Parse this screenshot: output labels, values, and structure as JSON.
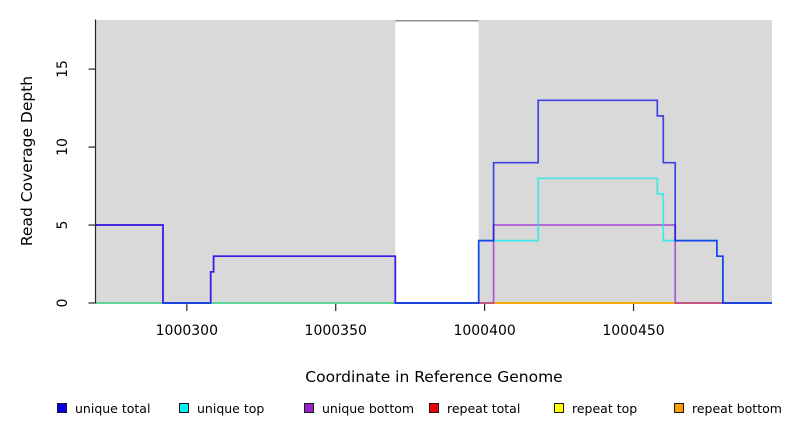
{
  "figure": {
    "y_axis": {
      "title": "Read Coverage Depth",
      "ticks": [
        "0",
        "5",
        "10",
        "15"
      ]
    },
    "x_axis": {
      "title": "Coordinate in Reference Genome",
      "ticks": [
        "1000300",
        "1000350",
        "1000400",
        "1000450"
      ]
    },
    "legend": {
      "items": [
        {
          "label": "unique total",
          "color": "#0000EE"
        },
        {
          "label": "unique top",
          "color": "#00EEEE"
        },
        {
          "label": "unique bottom",
          "color": "#9922CC"
        },
        {
          "label": "repeat total",
          "color": "#EE0000"
        },
        {
          "label": "repeat top",
          "color": "#FFFF00"
        },
        {
          "label": "repeat bottom",
          "color": "#FF9900"
        }
      ]
    }
  },
  "chart_data": {
    "type": "line",
    "subtype": "step-coverage",
    "title": "",
    "xlabel": "Coordinate in Reference Genome",
    "ylabel": "Read Coverage Depth",
    "xlim": [
      1000269.5,
      1000496.5
    ],
    "ylim": [
      0,
      18.15
    ],
    "xticks": [
      1000300,
      1000350,
      1000400,
      1000450
    ],
    "yticks": [
      0,
      5,
      10,
      15
    ],
    "grid": false,
    "legend_position": "bottom",
    "panel_color": "#ffffff",
    "shaded_regions": [
      {
        "x0": 1000269.5,
        "x1": 1000370,
        "color": "#d9d9d9"
      },
      {
        "x0": 1000398,
        "x1": 1000496.5,
        "color": "#d9d9d9"
      }
    ],
    "gap_region": {
      "x0": 1000370,
      "x1": 1000398,
      "top_border_color": "#8f8f8f"
    },
    "line_opacity": 0.7,
    "line_width": 1.7,
    "series": [
      {
        "name": "repeat total",
        "color": "#EE0000",
        "points": [
          [
            1000269.5,
            0
          ],
          [
            1000496.5,
            0
          ]
        ]
      },
      {
        "name": "repeat top",
        "color": "#FFFF00",
        "points": [
          [
            1000269.5,
            0
          ],
          [
            1000496.5,
            0
          ]
        ]
      },
      {
        "name": "repeat bottom",
        "color": "#FF9900",
        "points": [
          [
            1000269.5,
            0
          ],
          [
            1000496.5,
            0
          ]
        ]
      },
      {
        "name": "unique bottom",
        "color": "#9922CC",
        "points": [
          [
            1000269.5,
            5
          ],
          [
            1000292,
            0
          ],
          [
            1000308,
            2
          ],
          [
            1000309,
            3
          ],
          [
            1000370,
            0
          ],
          [
            1000403,
            5
          ],
          [
            1000464,
            0
          ],
          [
            1000496.5,
            0
          ]
        ]
      },
      {
        "name": "unique top",
        "color": "#00EEEE",
        "points": [
          [
            1000269.5,
            0
          ],
          [
            1000398,
            4
          ],
          [
            1000418,
            8
          ],
          [
            1000458,
            7
          ],
          [
            1000460,
            4
          ],
          [
            1000478,
            3
          ],
          [
            1000480,
            0
          ],
          [
            1000496.5,
            0
          ]
        ]
      },
      {
        "name": "unique total",
        "color": "#0000EE",
        "points": [
          [
            1000269.5,
            5
          ],
          [
            1000292,
            0
          ],
          [
            1000308,
            2
          ],
          [
            1000309,
            3
          ],
          [
            1000370,
            0
          ],
          [
            1000398,
            4
          ],
          [
            1000403,
            9
          ],
          [
            1000418,
            13
          ],
          [
            1000458,
            12
          ],
          [
            1000460,
            9
          ],
          [
            1000464,
            4
          ],
          [
            1000478,
            3
          ],
          [
            1000480,
            0
          ],
          [
            1000496.5,
            0
          ]
        ]
      }
    ]
  }
}
